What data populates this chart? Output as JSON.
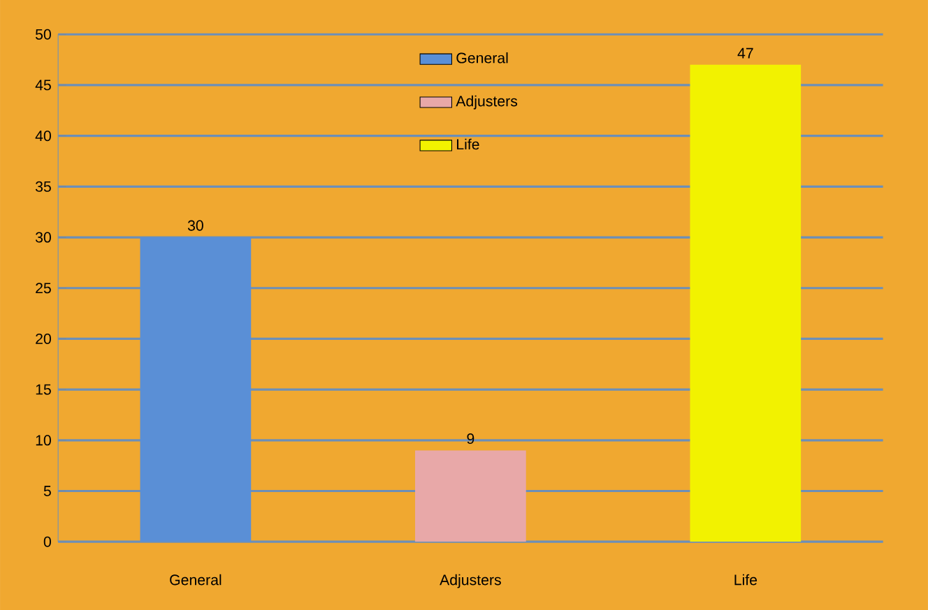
{
  "chart_data": {
    "type": "bar",
    "categories": [
      "General",
      "Adjusters",
      "Life"
    ],
    "series": [
      {
        "name": "General",
        "color": "#5a8fd6",
        "values": [
          30,
          null,
          null
        ]
      },
      {
        "name": "Adjusters",
        "color": "#e8a8a8",
        "values": [
          null,
          9,
          null
        ]
      },
      {
        "name": "Life",
        "color": "#f2f200",
        "values": [
          null,
          null,
          47
        ]
      }
    ],
    "ylim": [
      0,
      50
    ],
    "yticks": [
      0,
      5,
      10,
      15,
      20,
      25,
      30,
      35,
      40,
      45,
      50
    ],
    "grid": "y",
    "legend": "top",
    "data_labels": true
  }
}
